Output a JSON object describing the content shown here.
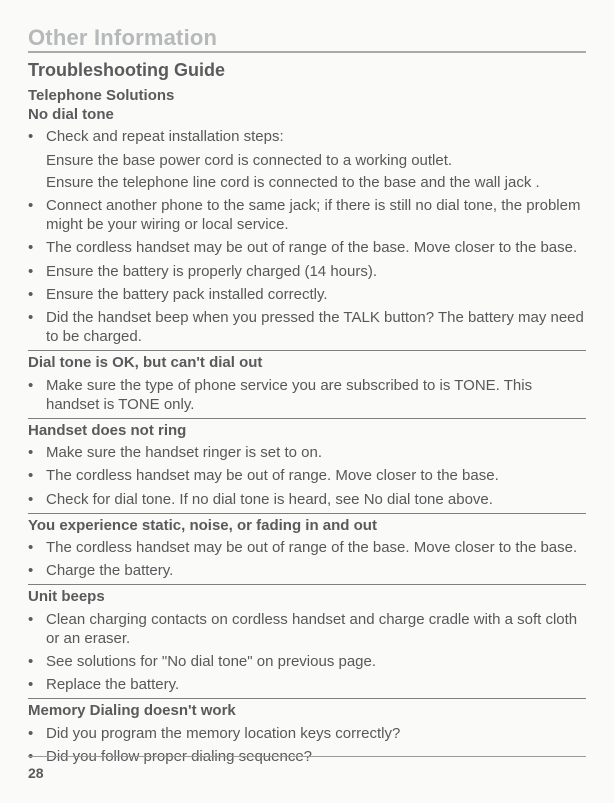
{
  "page_number": "28",
  "section_title": "Other Information",
  "subtitle": "Troubleshooting Guide",
  "groups": [
    {
      "heads": [
        "Telephone Solutions",
        "No dial tone"
      ],
      "bullets": [
        {
          "text": "Check and repeat installation steps:",
          "sub": [
            "Ensure the base power cord is connected to a working outlet.",
            "Ensure the telephone line cord is connected to the base and the wall jack ."
          ]
        },
        {
          "text": "Connect another phone to the same jack; if there is still no dial tone, the problem might be your wiring or local service."
        },
        {
          "text": "The cordless handset may be out of range of the base. Move closer to the base."
        },
        {
          "text": "Ensure the battery is properly charged (14 hours)."
        },
        {
          "text": "Ensure the battery pack installed correctly."
        },
        {
          "text": "Did the handset beep when you pressed the TALK button? The battery may need to be charged."
        }
      ]
    },
    {
      "heads": [
        "Dial tone is OK, but can't dial out"
      ],
      "bullets": [
        {
          "text": "Make sure the type of phone service you are subscribed to is TONE. This handset is TONE only."
        }
      ]
    },
    {
      "heads": [
        "Handset does not ring"
      ],
      "bullets": [
        {
          "text": "Make sure the handset ringer is set to on."
        },
        {
          "text": "The cordless handset may be out of range. Move closer to the base."
        },
        {
          "text": "Check for dial tone. If no dial tone is heard, see No dial tone above."
        }
      ]
    },
    {
      "heads": [
        "You experience static, noise, or fading in and out"
      ],
      "bullets": [
        {
          "text": "The cordless handset may be out of range of the base. Move closer to the base."
        },
        {
          "text": "Charge the battery."
        }
      ]
    },
    {
      "heads": [
        "Unit beeps"
      ],
      "bullets": [
        {
          "text": "Clean charging contacts on cordless handset and charge cradle with a soft cloth or an eraser."
        },
        {
          "text": "See solutions for \"No dial tone\" on previous page."
        },
        {
          "text": "Replace the battery."
        }
      ]
    },
    {
      "heads": [
        "Memory Dialing doesn't work"
      ],
      "bullets": [
        {
          "text": "Did you program the memory location keys correctly?"
        },
        {
          "text": "Did you follow proper dialing sequence?"
        }
      ],
      "no_trailing_rule": true
    }
  ],
  "colors": {
    "section_title": "#b6b8ba",
    "body_text": "#58585a",
    "rule": "#7d7e80",
    "title_rule": "#a9aaac",
    "background": "#fafaf9"
  },
  "font_sizes_pt": {
    "section_title": 16,
    "subtitle": 13,
    "subhead": 11,
    "body": 11,
    "pagenum": 10
  }
}
